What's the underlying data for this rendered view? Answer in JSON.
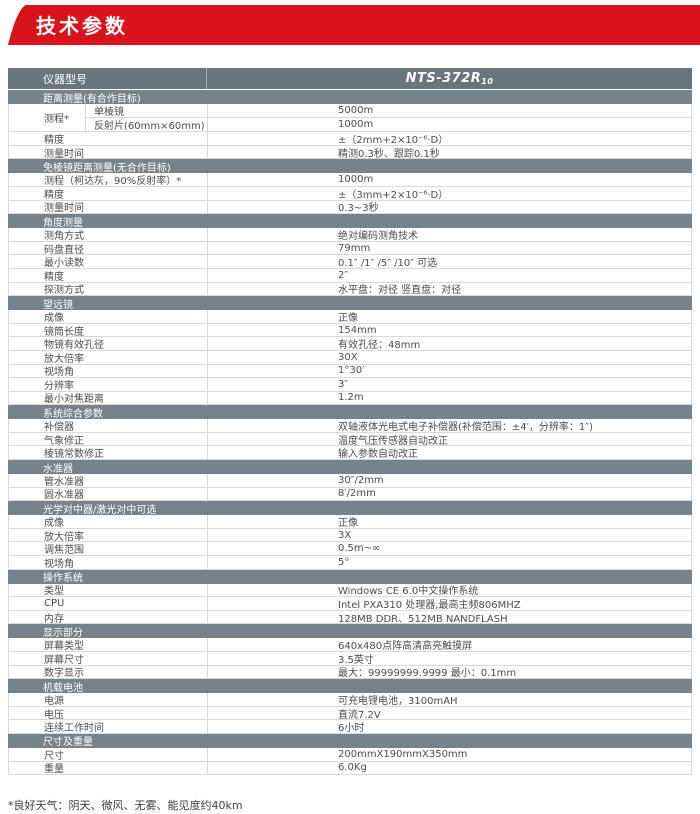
{
  "colors": {
    "accent_red": "#d8131c",
    "header_bg": "#68757c",
    "section_bg": "#76838a",
    "border": "#d9d9d9",
    "text": "#4c4c4c"
  },
  "page": {
    "banner_title": "技术参数",
    "footnote": "*良好天气：阴天、微风、无雾、能见度约40km"
  },
  "table": {
    "header": {
      "label": "仪器型号",
      "model_name": "NTS-372R",
      "model_sub": "10"
    },
    "sections": [
      {
        "title": "距离测量(有合作目标)",
        "rows": [
          {
            "label": "测程*",
            "subrows": [
              {
                "label": "单棱镜",
                "value": "5000m"
              },
              {
                "label": "反射片(60mm×60mm)",
                "value": "1000m"
              }
            ]
          },
          {
            "label": "精度",
            "value": "±（2mm+2×10⁻⁶·D）"
          },
          {
            "label": "测量时间",
            "value": "精测0.3秒、跟踪0.1秒"
          }
        ]
      },
      {
        "title": "免棱镜距离测量(无合作目标)",
        "rows": [
          {
            "label": "测程（柯达灰，90%反射率）*",
            "value": "1000m"
          },
          {
            "label": "精度",
            "value": "±（3mm+2×10⁻⁶·D）"
          },
          {
            "label": "测量时间",
            "value": "0.3~3秒"
          }
        ]
      },
      {
        "title": "角度测量",
        "rows": [
          {
            "label": "测角方式",
            "value": "绝对编码测角技术"
          },
          {
            "label": "码盘直径",
            "value": "79mm"
          },
          {
            "label": "最小读数",
            "value": "0.1″ /1″ /5″ /10″ 可选"
          },
          {
            "label": "精度",
            "value": "2″"
          },
          {
            "label": "探测方式",
            "value": "水平盘：对径  竖直盘：对径"
          }
        ]
      },
      {
        "title": "望远镜",
        "rows": [
          {
            "label": "成像",
            "value": "正像"
          },
          {
            "label": "镜筒长度",
            "value": "154mm"
          },
          {
            "label": "物镜有效孔径",
            "value": "有效孔径：48mm"
          },
          {
            "label": "放大倍率",
            "value": "30X"
          },
          {
            "label": "视场角",
            "value": "1°30′"
          },
          {
            "label": "分辨率",
            "value": "3″"
          },
          {
            "label": "最小对焦距离",
            "value": "1.2m"
          }
        ]
      },
      {
        "title": "系统综合参数",
        "rows": [
          {
            "label": "补偿器",
            "value": "双轴液体光电式电子补偿器(补偿范围：±4′，分辨率：1″)"
          },
          {
            "label": "气象修正",
            "value": "温度气压传感器自动改正"
          },
          {
            "label": "棱镜常数修正",
            "value": "输入参数自动改正"
          }
        ]
      },
      {
        "title": "水准器",
        "rows": [
          {
            "label": "管水准器",
            "value": "30″/2mm"
          },
          {
            "label": "圆水准器",
            "value": "8′/2mm"
          }
        ]
      },
      {
        "title": "光学对中器/激光对中可选",
        "rows": [
          {
            "label": "成像",
            "value": "正像"
          },
          {
            "label": "放大倍率",
            "value": "3X"
          },
          {
            "label": "调焦范围",
            "value": "0.5m~∞"
          },
          {
            "label": "视场角",
            "value": "5°"
          }
        ]
      },
      {
        "title": "操作系统",
        "rows": [
          {
            "label": "类型",
            "value": "Windows CE 6.0中文操作系统"
          },
          {
            "label": "CPU",
            "value": "Intel PXA310 处理器,最高主频806MHZ"
          },
          {
            "label": "内存",
            "value": "128MB DDR、512MB NANDFLASH"
          }
        ]
      },
      {
        "title": "显示部分",
        "rows": [
          {
            "label": "屏幕类型",
            "value": "640x480点阵高清高亮触摸屏"
          },
          {
            "label": "屏幕尺寸",
            "value": "3.5英寸"
          },
          {
            "label": "数字显示",
            "value": "最大：99999999.9999  最小：0.1mm"
          }
        ]
      },
      {
        "title": "机载电池",
        "rows": [
          {
            "label": "电源",
            "value": "可充电锂电池，3100mAH"
          },
          {
            "label": "电压",
            "value": "直流7.2V"
          },
          {
            "label": "连续工作时间",
            "value": "6小时"
          }
        ]
      },
      {
        "title": "尺寸及重量",
        "rows": [
          {
            "label": "尺寸",
            "value": "200mmX190mmX350mm"
          },
          {
            "label": "重量",
            "value": "6.0Kg"
          }
        ]
      }
    ]
  }
}
